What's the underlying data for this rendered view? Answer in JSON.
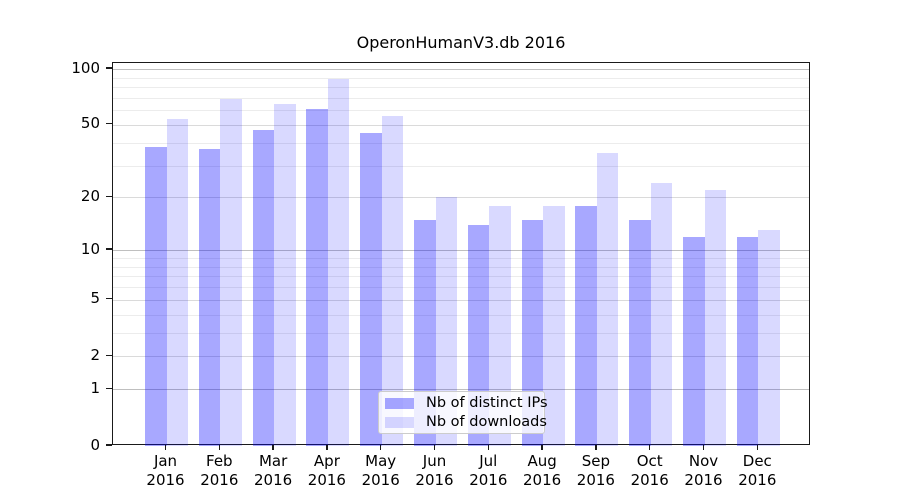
{
  "chart_data": {
    "type": "bar",
    "title": "OperonHumanV3.db 2016",
    "categories": [
      "Jan 2016",
      "Feb 2016",
      "Mar 2016",
      "Apr 2016",
      "May 2016",
      "Jun 2016",
      "Jul 2016",
      "Aug 2016",
      "Sep 2016",
      "Oct 2016",
      "Nov 2016",
      "Dec 2016"
    ],
    "series": [
      {
        "name": "Nb of distinct IPs",
        "base_color": "#0000ff",
        "alpha": 0.34,
        "flat_color": "#a9a9ff",
        "values": [
          38,
          37,
          47,
          61,
          45,
          15,
          14,
          15,
          18,
          15,
          12,
          12
        ]
      },
      {
        "name": "Nb of downloads",
        "base_color": "#0000ff",
        "alpha": 0.15,
        "flat_color": "#d9d9ff",
        "values": [
          54,
          69,
          65,
          88,
          56,
          20,
          18,
          18,
          35,
          24,
          22,
          13
        ]
      }
    ],
    "xlabel": "",
    "ylabel": "",
    "yscale": "log1p",
    "ylim": [
      0,
      108
    ],
    "yticks": [
      0,
      1,
      2,
      5,
      10,
      20,
      50,
      100
    ],
    "ytick_decades": [
      1,
      10,
      100
    ],
    "ytick_mids": [
      2,
      5,
      20,
      50
    ],
    "yticks_minor": [
      3,
      4,
      6,
      7,
      8,
      9,
      30,
      40,
      60,
      70,
      80,
      90
    ],
    "grid": "horizontal, gridlines visible through translucent bars",
    "legend_position": "lower center, inside axes"
  }
}
